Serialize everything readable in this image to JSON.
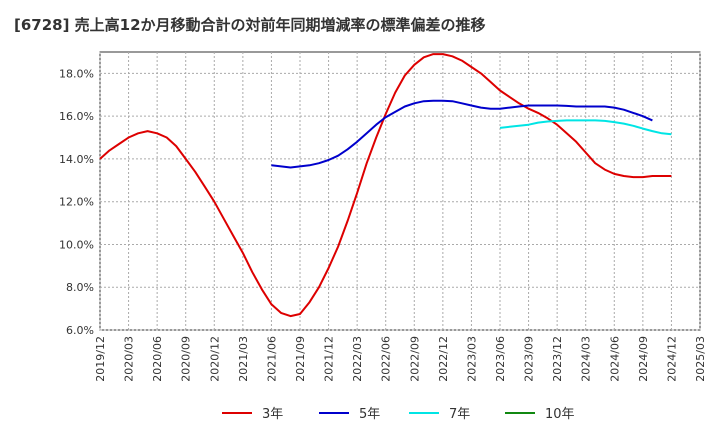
{
  "chart_data": {
    "type": "line",
    "title": "[6728]  売上高12か月移動合計の対前年同期増減率の標準偏差の推移",
    "ylim": [
      6.0,
      19.0
    ],
    "y_ticks": [
      6.0,
      8.0,
      10.0,
      12.0,
      14.0,
      16.0,
      18.0
    ],
    "y_tick_labels": [
      "6.0%",
      "8.0%",
      "10.0%",
      "12.0%",
      "14.0%",
      "16.0%",
      "18.0%"
    ],
    "x_tick_labels": [
      "2019/12",
      "2020/03",
      "2020/06",
      "2020/09",
      "2020/12",
      "2021/03",
      "2021/06",
      "2021/09",
      "2021/12",
      "2022/03",
      "2022/06",
      "2022/09",
      "2022/12",
      "2023/03",
      "2023/06",
      "2023/09",
      "2023/12",
      "2024/03",
      "2024/06",
      "2024/09",
      "2024/12",
      "2025/03"
    ],
    "grid": true,
    "legend_position": "bottom",
    "series": [
      {
        "name": "3年",
        "color": "#dd0000",
        "start_month_index": 0,
        "values": [
          14.0,
          14.4,
          14.7,
          15.0,
          15.2,
          15.3,
          15.2,
          15.0,
          14.6,
          14.0,
          13.4,
          12.7,
          12.0,
          11.2,
          10.4,
          9.6,
          8.7,
          7.9,
          7.2,
          6.8,
          6.65,
          6.75,
          7.3,
          8.0,
          8.9,
          9.9,
          11.1,
          12.4,
          13.8,
          15.0,
          16.1,
          17.1,
          17.9,
          18.4,
          18.75,
          18.9,
          18.9,
          18.8,
          18.6,
          18.3,
          18.0,
          17.6,
          17.2,
          16.9,
          16.6,
          16.35,
          16.15,
          15.9,
          15.6,
          15.2,
          14.8,
          14.3,
          13.8,
          13.5,
          13.3,
          13.2,
          13.15,
          13.15,
          13.2,
          13.2,
          13.2
        ]
      },
      {
        "name": "5年",
        "color": "#0000cc",
        "start_month_index": 18,
        "values": [
          13.7,
          13.65,
          13.6,
          13.65,
          13.7,
          13.8,
          13.95,
          14.15,
          14.45,
          14.8,
          15.2,
          15.6,
          15.95,
          16.2,
          16.45,
          16.6,
          16.7,
          16.72,
          16.72,
          16.7,
          16.6,
          16.5,
          16.4,
          16.35,
          16.35,
          16.4,
          16.45,
          16.5,
          16.5,
          16.5,
          16.5,
          16.48,
          16.45,
          16.45,
          16.45,
          16.45,
          16.4,
          16.3,
          16.15,
          16.0,
          15.8
        ]
      },
      {
        "name": "7年",
        "color": "#00e5e5",
        "start_month_index": 42,
        "values": [
          15.45,
          15.5,
          15.55,
          15.6,
          15.7,
          15.75,
          15.78,
          15.8,
          15.8,
          15.8,
          15.8,
          15.78,
          15.72,
          15.65,
          15.55,
          15.42,
          15.3,
          15.2,
          15.15
        ]
      },
      {
        "name": "10年",
        "color": "#118811",
        "start_month_index": 0,
        "values": []
      }
    ]
  }
}
